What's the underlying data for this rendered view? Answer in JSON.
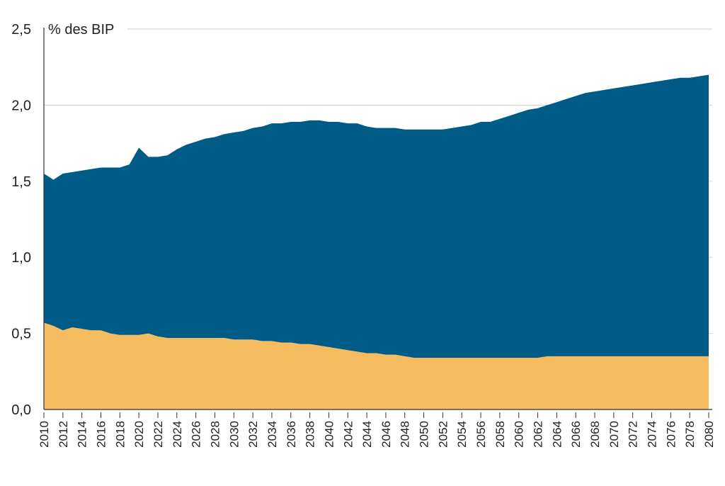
{
  "chart_data": {
    "type": "area",
    "stacked": true,
    "unit_label": "% des BIP",
    "ylim": [
      0,
      2.5
    ],
    "yticks": [
      0.0,
      0.5,
      1.0,
      1.5,
      2.0,
      2.5
    ],
    "ytick_labels": [
      "0,0",
      "0,5",
      "1,0",
      "1,5",
      "2,0",
      "2,5"
    ],
    "xtick_labels": [
      "2010",
      "2012",
      "2014",
      "2016",
      "2018",
      "2020",
      "2022",
      "2024",
      "2026",
      "2028",
      "2030",
      "2032",
      "2034",
      "2036",
      "2038",
      "2040",
      "2042",
      "2044",
      "2046",
      "2048",
      "2050",
      "2052",
      "2054",
      "2056",
      "2058",
      "2060",
      "2062",
      "2064",
      "2066",
      "2068",
      "2070",
      "2072",
      "2074",
      "2076",
      "2078",
      "2080"
    ],
    "grid": "horizontal",
    "x_start": 2010,
    "x_end": 2080,
    "colors": {
      "series1": "#f5bd60",
      "series2": "#005c86"
    },
    "series": [
      {
        "name": "series1",
        "color": "#f5bd60",
        "values": [
          0.57,
          0.55,
          0.52,
          0.54,
          0.53,
          0.52,
          0.52,
          0.5,
          0.49,
          0.49,
          0.49,
          0.5,
          0.48,
          0.47,
          0.47,
          0.47,
          0.47,
          0.47,
          0.47,
          0.47,
          0.46,
          0.46,
          0.46,
          0.45,
          0.45,
          0.44,
          0.44,
          0.43,
          0.43,
          0.42,
          0.41,
          0.4,
          0.39,
          0.38,
          0.37,
          0.37,
          0.36,
          0.36,
          0.35,
          0.34,
          0.34,
          0.34,
          0.34,
          0.34,
          0.34,
          0.34,
          0.34,
          0.34,
          0.34,
          0.34,
          0.34,
          0.34,
          0.34,
          0.35,
          0.35,
          0.35,
          0.35,
          0.35,
          0.35,
          0.35,
          0.35,
          0.35,
          0.35,
          0.35,
          0.35,
          0.35,
          0.35,
          0.35,
          0.35,
          0.35,
          0.35
        ]
      },
      {
        "name": "series2",
        "color": "#005c86",
        "values": [
          0.98,
          0.96,
          1.03,
          1.02,
          1.04,
          1.06,
          1.07,
          1.09,
          1.1,
          1.12,
          1.23,
          1.16,
          1.18,
          1.2,
          1.24,
          1.27,
          1.29,
          1.31,
          1.32,
          1.34,
          1.36,
          1.37,
          1.39,
          1.41,
          1.43,
          1.44,
          1.45,
          1.46,
          1.47,
          1.48,
          1.48,
          1.49,
          1.49,
          1.5,
          1.49,
          1.48,
          1.49,
          1.49,
          1.49,
          1.5,
          1.5,
          1.5,
          1.5,
          1.51,
          1.52,
          1.53,
          1.55,
          1.55,
          1.57,
          1.59,
          1.61,
          1.63,
          1.64,
          1.65,
          1.67,
          1.69,
          1.71,
          1.73,
          1.74,
          1.75,
          1.76,
          1.77,
          1.78,
          1.79,
          1.8,
          1.81,
          1.82,
          1.83,
          1.83,
          1.84,
          1.85
        ]
      }
    ]
  }
}
